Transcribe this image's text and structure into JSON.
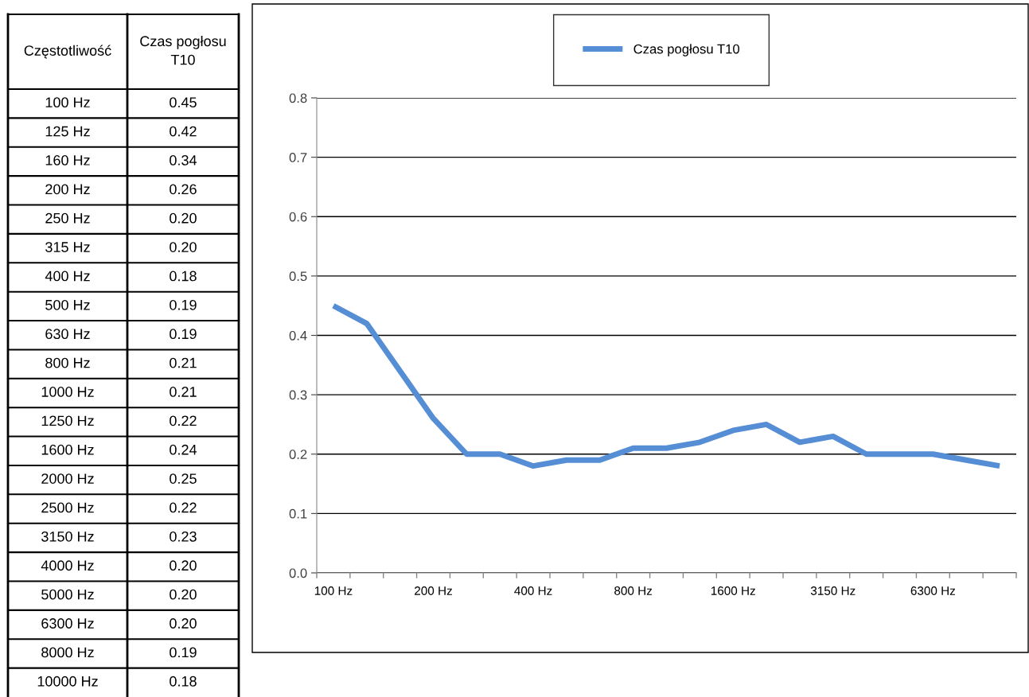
{
  "chart_data": {
    "type": "line",
    "annotations": [
      "Częstotliwość",
      "100 Hz",
      "125 Hz",
      "160 Hz",
      "200 Hz",
      "250 Hz",
      "315 Hz",
      "400 Hz",
      "500 Hz",
      "630 Hz",
      "800 Hz",
      "1000 Hz",
      "1250 Hz",
      "1600 Hz",
      "2000 Hz",
      "2500 Hz",
      "3150 Hz",
      "4000 Hz",
      "5000 Hz",
      "6300 Hz",
      "8000 Hz",
      "10000 Hz",
      "0.45",
      "0.42",
      "0.34",
      "0.26",
      "0.20",
      "0.20",
      "0.18",
      "0.19",
      "0.19",
      "0.21",
      "0.21",
      "0.22",
      "0.24",
      "0.25",
      "0.22",
      "0.23",
      "0.20",
      "0.20",
      "0.20",
      "0.19",
      "0.18"
    ],
    "categories": [
      "100 Hz",
      null,
      null,
      "200 Hz",
      null,
      null,
      "400 Hz",
      null,
      null,
      "800 Hz",
      null,
      null,
      "1600 Hz",
      null,
      null,
      "3150 Hz",
      null,
      null,
      "6300 Hz",
      null,
      null
    ],
    "series": [
      {
        "name": "Czas pogłosu T10",
        "color": "#558ed5",
        "values": [
          0.45,
          0.42,
          0.34,
          0.26,
          0.2,
          0.2,
          0.18,
          0.19,
          0.19,
          0.21,
          0.21,
          0.22,
          0.24,
          0.25,
          0.22,
          0.23,
          0.2,
          0.2,
          0.2,
          0.19,
          0.18
        ]
      }
    ],
    "ylim": [
      0,
      0.8
    ],
    "yticks": [
      {
        "value": 0,
        "label": "0.0"
      },
      {
        "value": 0.1,
        "label": "0.1"
      },
      {
        "value": 0.2,
        "label": "0.2"
      },
      {
        "value": 0.3,
        "label": "0.3"
      },
      {
        "value": 0.4,
        "label": "0.4"
      },
      {
        "value": 0.5,
        "label": "0.5"
      },
      {
        "value": 0.6,
        "label": "0.6"
      },
      {
        "value": 0.7,
        "label": "0.7"
      },
      {
        "value": 0.8,
        "label": "0.8"
      }
    ],
    "grid": "y",
    "legend": "top",
    "marker": "none",
    "line_style": "solid"
  }
}
